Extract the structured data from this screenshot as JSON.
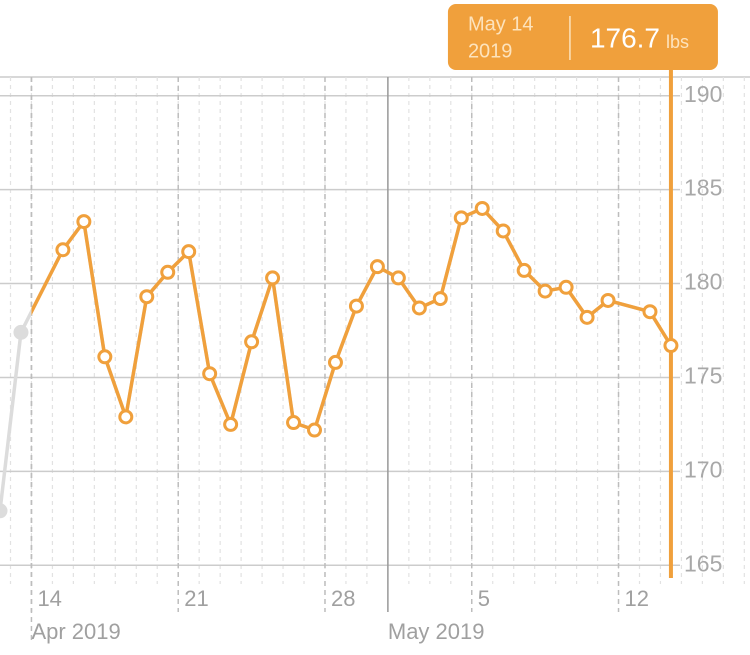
{
  "chart_data": {
    "type": "line",
    "x": [
      "2019-04-12",
      "2019-04-13",
      "2019-04-15",
      "2019-04-16",
      "2019-04-17",
      "2019-04-18",
      "2019-04-19",
      "2019-04-20",
      "2019-04-21",
      "2019-04-22",
      "2019-04-23",
      "2019-04-24",
      "2019-04-25",
      "2019-04-26",
      "2019-04-27",
      "2019-04-28",
      "2019-04-29",
      "2019-04-30",
      "2019-05-01",
      "2019-05-02",
      "2019-05-03",
      "2019-05-04",
      "2019-05-05",
      "2019-05-06",
      "2019-05-07",
      "2019-05-08",
      "2019-05-09",
      "2019-05-10",
      "2019-05-11",
      "2019-05-13",
      "2019-05-14"
    ],
    "values": [
      167.9,
      177.4,
      181.8,
      183.3,
      176.1,
      172.9,
      179.3,
      180.6,
      181.7,
      175.2,
      172.5,
      176.9,
      180.3,
      172.6,
      172.2,
      175.8,
      178.8,
      180.9,
      180.3,
      178.7,
      179.2,
      183.5,
      184.0,
      182.8,
      180.7,
      179.6,
      179.8,
      178.2,
      179.1,
      178.5,
      176.7
    ],
    "color": "#f0a03c",
    "inactive_color": "#dcdcdc",
    "xlim": [
      "2019-04-12T12:00",
      "2019-05-18T06:30"
    ],
    "xticks": [
      {
        "value": "2019-04-14",
        "label": "14"
      },
      {
        "value": "2019-04-21",
        "label": "21"
      },
      {
        "value": "2019-04-28",
        "label": "28"
      },
      {
        "value": "2019-05-05",
        "label": "5"
      },
      {
        "value": "2019-05-12",
        "label": "12"
      }
    ],
    "month_ticks": [
      {
        "value": "2019-04-14",
        "label": "Apr 2019"
      },
      {
        "value": "2019-05-01",
        "label": "May 2019"
      }
    ],
    "ylim": [
      164,
      191
    ],
    "yticks": [
      165,
      170,
      175,
      180,
      185,
      190
    ],
    "grid": true,
    "selected_index": 30,
    "tooltip": {
      "date": "May 14",
      "year": "2019",
      "unit": "lbs"
    }
  }
}
